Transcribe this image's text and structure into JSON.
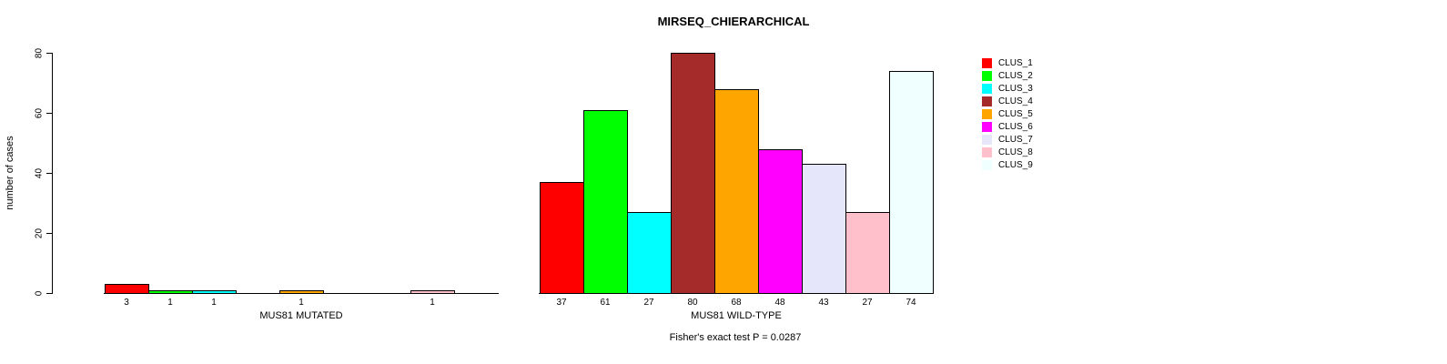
{
  "figure": {
    "title": "MIRSEQ_CHIERARCHICAL",
    "ylabel": "number of cases",
    "footnote": "Fisher's exact test P = 0.0287"
  },
  "chart_data": {
    "type": "bar",
    "title": "MIRSEQ_CHIERARCHICAL",
    "xlabel": "",
    "ylabel": "number of cases",
    "ylim": [
      0,
      80
    ],
    "yticks": [
      0,
      20,
      40,
      60,
      80
    ],
    "grid": false,
    "legend_position": "top-right",
    "annotation": "Fisher's exact test P = 0.0287",
    "categories": [
      "CLUS_1",
      "CLUS_2",
      "CLUS_3",
      "CLUS_4",
      "CLUS_5",
      "CLUS_6",
      "CLUS_7",
      "CLUS_8",
      "CLUS_9"
    ],
    "legend": [
      {
        "name": "CLUS_1",
        "color": "#FF0000"
      },
      {
        "name": "CLUS_2",
        "color": "#00FF00"
      },
      {
        "name": "CLUS_3",
        "color": "#00FFFF"
      },
      {
        "name": "CLUS_4",
        "color": "#A52A2A"
      },
      {
        "name": "CLUS_5",
        "color": "#FFA500"
      },
      {
        "name": "CLUS_6",
        "color": "#FF00FF"
      },
      {
        "name": "CLUS_7",
        "color": "#E6E6FA"
      },
      {
        "name": "CLUS_8",
        "color": "#FFC0CB"
      },
      {
        "name": "CLUS_9",
        "color": "#F0FFFF"
      }
    ],
    "groups": [
      {
        "label": "MUS81 MUTATED",
        "values": [
          3,
          1,
          1,
          0,
          1,
          0,
          0,
          1,
          0
        ]
      },
      {
        "label": "MUS81 WILD-TYPE",
        "values": [
          37,
          61,
          27,
          80,
          68,
          48,
          43,
          27,
          74
        ]
      }
    ]
  }
}
